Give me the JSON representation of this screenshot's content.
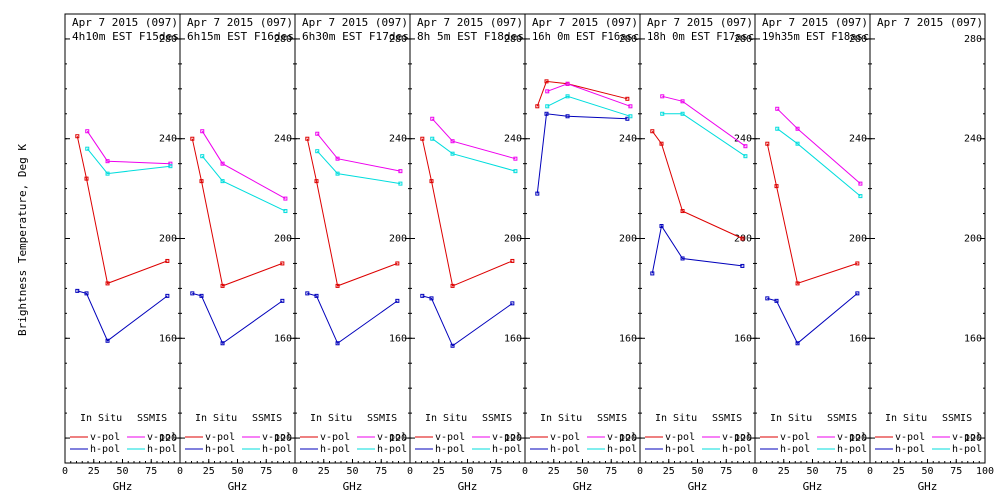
{
  "figure": {
    "ylabel": "Brightness Temperature, Deg K",
    "xlabel": "GHz",
    "legend": {
      "left_header": "In Situ",
      "right_header": "SSMIS",
      "v_label": "v-pol",
      "h_label": "h-pol"
    },
    "colors": {
      "insitu_v": "#dd0000",
      "insitu_h": "#0000bb",
      "ssmis_v": "#ee00ee",
      "ssmis_h": "#00dddd"
    }
  },
  "chart_data": [
    {
      "type": "line",
      "title": "Apr 7 2015 (097)",
      "subtitle": "4h10m EST F15des",
      "xlim": [
        0,
        100
      ],
      "ylim": [
        110,
        290
      ],
      "xticks": [
        "0",
        "25",
        "50",
        "75",
        "100"
      ],
      "yticks": [
        "120",
        "160",
        "200",
        "240",
        "280"
      ],
      "xlabel": "GHz",
      "series": [
        {
          "name": "In Situ v-pol",
          "x": [
            10.7,
            18.7,
            37,
            89
          ],
          "values": [
            241,
            224,
            182,
            191
          ]
        },
        {
          "name": "In Situ h-pol",
          "x": [
            10.7,
            18.7,
            37,
            89
          ],
          "values": [
            179,
            178,
            159,
            177
          ]
        },
        {
          "name": "SSMIS v-pol",
          "x": [
            19.35,
            37,
            91.655
          ],
          "values": [
            243,
            231,
            230
          ]
        },
        {
          "name": "SSMIS h-pol",
          "x": [
            19.35,
            37,
            91.655
          ],
          "values": [
            236,
            226,
            229
          ]
        }
      ]
    },
    {
      "type": "line",
      "title": "Apr 7 2015 (097)",
      "subtitle": "6h15m EST F16des",
      "xlim": [
        0,
        100
      ],
      "ylim": [
        110,
        290
      ],
      "xticks": [
        "0",
        "25",
        "50",
        "75",
        "100"
      ],
      "yticks": [
        "120",
        "160",
        "200",
        "240",
        "280"
      ],
      "xlabel": "GHz",
      "series": [
        {
          "name": "In Situ v-pol",
          "x": [
            10.7,
            18.7,
            37,
            89
          ],
          "values": [
            240,
            223,
            181,
            190
          ]
        },
        {
          "name": "In Situ h-pol",
          "x": [
            10.7,
            18.7,
            37,
            89
          ],
          "values": [
            178,
            177,
            158,
            175
          ]
        },
        {
          "name": "SSMIS v-pol",
          "x": [
            19.35,
            37,
            91.655
          ],
          "values": [
            243,
            230,
            216
          ]
        },
        {
          "name": "SSMIS h-pol",
          "x": [
            19.35,
            37,
            91.655
          ],
          "values": [
            233,
            223,
            211
          ]
        }
      ]
    },
    {
      "type": "line",
      "title": "Apr 7 2015 (097)",
      "subtitle": "6h30m EST F17des",
      "xlim": [
        0,
        100
      ],
      "ylim": [
        110,
        290
      ],
      "xticks": [
        "0",
        "25",
        "50",
        "75",
        "100"
      ],
      "yticks": [
        "120",
        "160",
        "200",
        "240",
        "280"
      ],
      "xlabel": "GHz",
      "series": [
        {
          "name": "In Situ v-pol",
          "x": [
            10.7,
            18.7,
            37,
            89
          ],
          "values": [
            240,
            223,
            181,
            190
          ]
        },
        {
          "name": "In Situ h-pol",
          "x": [
            10.7,
            18.7,
            37,
            89
          ],
          "values": [
            178,
            177,
            158,
            175
          ]
        },
        {
          "name": "SSMIS v-pol",
          "x": [
            19.35,
            37,
            91.655
          ],
          "values": [
            242,
            232,
            227
          ]
        },
        {
          "name": "SSMIS h-pol",
          "x": [
            19.35,
            37,
            91.655
          ],
          "values": [
            235,
            226,
            222
          ]
        }
      ]
    },
    {
      "type": "line",
      "title": "Apr 7 2015 (097)",
      "subtitle": "8h 5m EST F18des",
      "xlim": [
        0,
        100
      ],
      "ylim": [
        110,
        290
      ],
      "xticks": [
        "0",
        "25",
        "50",
        "75",
        "100"
      ],
      "yticks": [
        "120",
        "160",
        "200",
        "240",
        "280"
      ],
      "xlabel": "GHz",
      "series": [
        {
          "name": "In Situ v-pol",
          "x": [
            10.7,
            18.7,
            37,
            89
          ],
          "values": [
            240,
            223,
            181,
            191
          ]
        },
        {
          "name": "In Situ h-pol",
          "x": [
            10.7,
            18.7,
            37,
            89
          ],
          "values": [
            177,
            176,
            157,
            174
          ]
        },
        {
          "name": "SSMIS v-pol",
          "x": [
            19.35,
            37,
            91.655
          ],
          "values": [
            248,
            239,
            232
          ]
        },
        {
          "name": "SSMIS h-pol",
          "x": [
            19.35,
            37,
            91.655
          ],
          "values": [
            240,
            234,
            227
          ]
        }
      ]
    },
    {
      "type": "line",
      "title": "Apr 7 2015 (097)",
      "subtitle": "16h 0m EST F16asc",
      "xlim": [
        0,
        100
      ],
      "ylim": [
        110,
        290
      ],
      "xticks": [
        "0",
        "25",
        "50",
        "75",
        "100"
      ],
      "yticks": [
        "120",
        "160",
        "200",
        "240",
        "280"
      ],
      "xlabel": "GHz",
      "series": [
        {
          "name": "In Situ v-pol",
          "x": [
            10.7,
            18.7,
            37,
            89
          ],
          "values": [
            253,
            263,
            262,
            256
          ]
        },
        {
          "name": "In Situ h-pol",
          "x": [
            10.7,
            18.7,
            37,
            89
          ],
          "values": [
            218,
            250,
            249,
            248
          ]
        },
        {
          "name": "SSMIS v-pol",
          "x": [
            19.35,
            37,
            91.655
          ],
          "values": [
            259,
            262,
            253
          ]
        },
        {
          "name": "SSMIS h-pol",
          "x": [
            19.35,
            37,
            91.655
          ],
          "values": [
            253,
            257,
            249
          ]
        }
      ]
    },
    {
      "type": "line",
      "title": "Apr 7 2015 (097)",
      "subtitle": "18h 0m EST F17asc",
      "xlim": [
        0,
        100
      ],
      "ylim": [
        110,
        290
      ],
      "xticks": [
        "0",
        "25",
        "50",
        "75",
        "100"
      ],
      "yticks": [
        "120",
        "160",
        "200",
        "240",
        "280"
      ],
      "xlabel": "GHz",
      "series": [
        {
          "name": "In Situ v-pol",
          "x": [
            10.7,
            18.7,
            37,
            89
          ],
          "values": [
            243,
            238,
            211,
            200
          ]
        },
        {
          "name": "In Situ h-pol",
          "x": [
            10.7,
            18.7,
            37,
            89
          ],
          "values": [
            186,
            205,
            192,
            189
          ]
        },
        {
          "name": "SSMIS v-pol",
          "x": [
            19.35,
            37,
            91.655
          ],
          "values": [
            257,
            255,
            237
          ]
        },
        {
          "name": "SSMIS h-pol",
          "x": [
            19.35,
            37,
            91.655
          ],
          "values": [
            250,
            250,
            233
          ]
        }
      ]
    },
    {
      "type": "line",
      "title": "Apr 7 2015 (097)",
      "subtitle": "19h35m EST F18asc",
      "xlim": [
        0,
        100
      ],
      "ylim": [
        110,
        290
      ],
      "xticks": [
        "0",
        "25",
        "50",
        "75",
        "100"
      ],
      "yticks": [
        "120",
        "160",
        "200",
        "240",
        "280"
      ],
      "xlabel": "GHz",
      "series": [
        {
          "name": "In Situ v-pol",
          "x": [
            10.7,
            18.7,
            37,
            89
          ],
          "values": [
            238,
            221,
            182,
            190
          ]
        },
        {
          "name": "In Situ h-pol",
          "x": [
            10.7,
            18.7,
            37,
            89
          ],
          "values": [
            176,
            175,
            158,
            178
          ]
        },
        {
          "name": "SSMIS v-pol",
          "x": [
            19.35,
            37,
            91.655
          ],
          "values": [
            252,
            244,
            222
          ]
        },
        {
          "name": "SSMIS h-pol",
          "x": [
            19.35,
            37,
            91.655
          ],
          "values": [
            244,
            238,
            217
          ]
        }
      ]
    },
    {
      "type": "line",
      "title": "Apr 7 2015 (097)",
      "subtitle": "",
      "xlim": [
        0,
        100
      ],
      "ylim": [
        110,
        290
      ],
      "xticks": [
        "0",
        "25",
        "50",
        "75",
        "100"
      ],
      "yticks": [
        "120",
        "160",
        "200",
        "240",
        "280"
      ],
      "xlabel": "GHz",
      "series": []
    }
  ]
}
